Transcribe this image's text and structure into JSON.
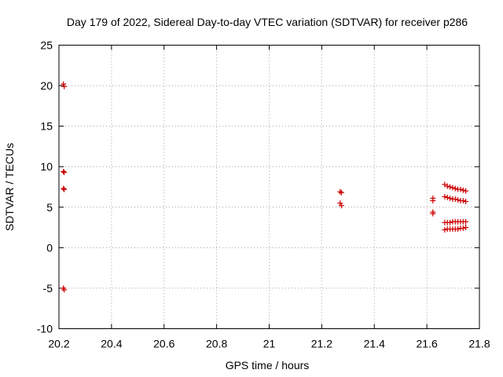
{
  "chart_data": {
    "type": "scatter",
    "title": "Day 179 of 2022, Sidereal Day-to-day VTEC variation (SDTVAR) for receiver p286",
    "xlabel": "GPS time / hours",
    "ylabel": "SDTVAR / TECUs",
    "xlim": [
      20.2,
      21.8
    ],
    "ylim": [
      -10,
      25
    ],
    "x_ticks": [
      20.2,
      20.4,
      20.6,
      20.8,
      21.0,
      21.2,
      21.4,
      21.6,
      21.8
    ],
    "x_tick_labels": [
      "20.2",
      "20.4",
      "20.6",
      "20.8",
      "21",
      "21.2",
      "21.4",
      "21.6",
      "21.8"
    ],
    "y_ticks": [
      -10,
      -5,
      0,
      5,
      10,
      15,
      20,
      25
    ],
    "y_tick_labels": [
      "-10",
      "-5",
      "0",
      "5",
      "10",
      "15",
      "20",
      "25"
    ],
    "grid": true,
    "marker": "+",
    "color": "#cc0000",
    "series": [
      {
        "name": "SDTVAR",
        "points": [
          [
            20.217,
            20.2
          ],
          [
            20.22,
            19.9
          ],
          [
            20.217,
            9.4
          ],
          [
            20.22,
            9.3
          ],
          [
            20.217,
            7.3
          ],
          [
            20.22,
            7.2
          ],
          [
            20.217,
            -5.0
          ],
          [
            20.22,
            -5.2
          ],
          [
            21.27,
            6.9
          ],
          [
            21.275,
            6.8
          ],
          [
            21.27,
            5.5
          ],
          [
            21.275,
            5.2
          ],
          [
            21.623,
            6.1
          ],
          [
            21.623,
            5.8
          ],
          [
            21.623,
            4.4
          ],
          [
            21.623,
            4.2
          ],
          [
            21.668,
            7.8
          ],
          [
            21.678,
            7.6
          ],
          [
            21.688,
            7.5
          ],
          [
            21.698,
            7.4
          ],
          [
            21.708,
            7.3
          ],
          [
            21.718,
            7.2
          ],
          [
            21.728,
            7.2
          ],
          [
            21.738,
            7.1
          ],
          [
            21.748,
            7.0
          ],
          [
            21.668,
            6.3
          ],
          [
            21.678,
            6.2
          ],
          [
            21.688,
            6.1
          ],
          [
            21.698,
            6.0
          ],
          [
            21.708,
            6.0
          ],
          [
            21.718,
            5.9
          ],
          [
            21.728,
            5.8
          ],
          [
            21.738,
            5.8
          ],
          [
            21.748,
            5.7
          ],
          [
            21.668,
            3.1
          ],
          [
            21.678,
            3.1
          ],
          [
            21.688,
            3.1
          ],
          [
            21.698,
            3.2
          ],
          [
            21.708,
            3.2
          ],
          [
            21.718,
            3.2
          ],
          [
            21.728,
            3.2
          ],
          [
            21.738,
            3.2
          ],
          [
            21.748,
            3.2
          ],
          [
            21.668,
            2.2
          ],
          [
            21.678,
            2.3
          ],
          [
            21.688,
            2.3
          ],
          [
            21.698,
            2.3
          ],
          [
            21.708,
            2.3
          ],
          [
            21.718,
            2.3
          ],
          [
            21.728,
            2.4
          ],
          [
            21.738,
            2.4
          ],
          [
            21.748,
            2.5
          ]
        ]
      }
    ]
  }
}
